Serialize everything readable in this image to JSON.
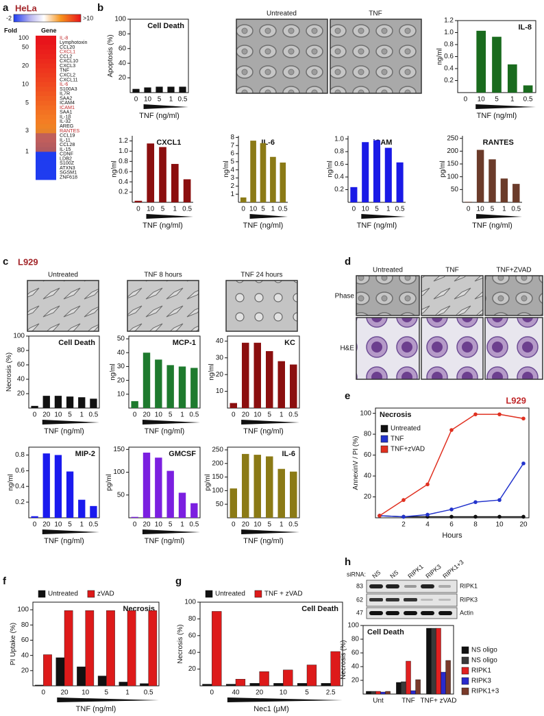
{
  "panel_labels": [
    "a",
    "b",
    "c",
    "d",
    "e",
    "f",
    "g",
    "h"
  ],
  "heatmap": {
    "title": "HeLa",
    "scale_min": "-2",
    "scale_max": ">10",
    "fold_header": "Fold",
    "gene_header": "Gene",
    "fold_labels": [
      "100",
      "50",
      "20",
      "10",
      "5",
      "3",
      "1"
    ],
    "genes": [
      "IL-8",
      "Lymphotoxin",
      "CCL20",
      "CXCL1",
      "CCL2",
      "CXCL10",
      "CXCL3",
      "TNF",
      "CXCL2",
      "CXCL11",
      "IL-6",
      "S100A3",
      "IL7R",
      "SAA2",
      "ICAM4",
      "ICAM1",
      "SAA1",
      "IL-1β",
      "IL-32",
      "AREG",
      "RANTES",
      "CCL19",
      "IL-11",
      "CCL28",
      "IL-15",
      "CDNF",
      "LDB2",
      "S100Z",
      "ATXN3",
      "SGSM1",
      "ZNF618"
    ],
    "colors": [
      "#e8141b",
      "#e8141b",
      "#e91a1b",
      "#ea1f1c",
      "#eb241c",
      "#ec2a1d",
      "#ed301d",
      "#ee361e",
      "#ee3c1e",
      "#ef421f",
      "#f0481f",
      "#f04f20",
      "#f15620",
      "#f15d21",
      "#f26421",
      "#f36b22",
      "#f37222",
      "#f47823",
      "#f47d24",
      "#f08224",
      "#e8822a",
      "#c0605a",
      "#c05e5c",
      "#b85c5e",
      "#b05a60",
      "#1f3cf0",
      "#1f3cf0",
      "#1f3cf0",
      "#1f3cf0",
      "#1f3cf0",
      "#1f3cf0"
    ],
    "highlighted_rows": [
      0,
      3,
      10,
      15,
      20
    ],
    "highlight_color": "#c0282a"
  },
  "panel_b_images": {
    "labels": [
      "Untreated",
      "TNF"
    ]
  },
  "panel_c": {
    "title": "L929",
    "image_labels": [
      "Untreated",
      "TNF 8 hours",
      "TNF 24 hours"
    ]
  },
  "panel_d": {
    "column_labels": [
      "Untreated",
      "TNF",
      "TNF+ZVAD"
    ],
    "row_labels": [
      "Phase",
      "H&E"
    ]
  },
  "panel_h_blot": {
    "sirna_label": "siRNA:",
    "lanes": [
      "NS",
      "NS",
      "RIPK1",
      "RIPK3",
      "RIPK1+3"
    ],
    "markers": [
      83,
      62,
      47
    ],
    "bands": [
      "RIPK1",
      "RIPK3",
      "Actin"
    ]
  },
  "chart_data": [
    {
      "type": "bar",
      "title": "Cell Death",
      "ylabel": "Apoptosis (%)",
      "xlabel": "TNF (ng/ml)",
      "dose_wedge": true,
      "frame": true,
      "categories": [
        "0",
        "10",
        "5",
        "1",
        "0.5"
      ],
      "values": [
        5,
        7,
        8,
        8,
        8
      ],
      "color": "#111111",
      "ylim": [
        0,
        100
      ],
      "yticks": [
        20,
        40,
        60,
        80,
        100
      ]
    },
    {
      "type": "bar",
      "title": "IL-8",
      "ylabel": "ng/ml",
      "xlabel": "TNF (ng/ml)",
      "dose_wedge": true,
      "frame": true,
      "categories": [
        "0",
        "10",
        "5",
        "1",
        "0.5"
      ],
      "values": [
        0,
        1.03,
        0.93,
        0.47,
        0.12
      ],
      "color": "#1a6b1e",
      "ylim": [
        0,
        1.2
      ],
      "yticks": [
        0.2,
        0.4,
        0.6,
        0.8,
        {
          "value": 1,
          "label": "1.0"
        },
        1.2
      ]
    },
    {
      "type": "bar",
      "title": "CXCL1",
      "ylabel": "ng/ml",
      "xlabel": "TNF (ng/ml)",
      "dose_wedge": true,
      "categories": [
        "0",
        "10",
        "5",
        "1",
        "0.5"
      ],
      "values": [
        0.03,
        1.15,
        1.08,
        0.75,
        0.45
      ],
      "color": "#8b0f0f",
      "ylim": [
        0,
        1.3
      ],
      "yticks": [
        0.2,
        0.4,
        0.6,
        0.8,
        {
          "value": 1,
          "label": "1.0"
        },
        1.2
      ]
    },
    {
      "type": "bar",
      "title": "IL-6",
      "ylabel": "ng/ml",
      "xlabel": "TNF (ng/ml)",
      "dose_wedge": true,
      "categories": [
        "0",
        "10",
        "5",
        "1",
        "0.5"
      ],
      "values": [
        0.6,
        7.6,
        7.3,
        5.6,
        4.9
      ],
      "color": "#8b7a16",
      "ylim": [
        0,
        8.2
      ],
      "yticks": [
        1,
        2,
        3,
        4,
        5,
        6,
        7,
        8
      ]
    },
    {
      "type": "bar",
      "title": "iCAM",
      "ylabel": "ng/ml",
      "xlabel": "TNF (ng/ml)",
      "dose_wedge": true,
      "categories": [
        "0",
        "10",
        "5",
        "1",
        "0.5"
      ],
      "values": [
        0.24,
        0.95,
        0.98,
        0.86,
        0.63
      ],
      "color": "#1a1ae6",
      "ylim": [
        0,
        1.05
      ],
      "yticks": [
        0.2,
        0.4,
        0.6,
        0.8,
        {
          "value": 1,
          "label": "1.0"
        }
      ]
    },
    {
      "type": "bar",
      "title": "RANTES",
      "ylabel": "pg/ml",
      "xlabel": "TNF (ng/ml)",
      "dose_wedge": true,
      "categories": [
        "0",
        "10",
        "5",
        "1",
        "0.5"
      ],
      "values": [
        2,
        205,
        168,
        93,
        72
      ],
      "color": "#6b3b2a",
      "ylim": [
        0,
        260
      ],
      "yticks": [
        50,
        100,
        150,
        200,
        250
      ]
    },
    {
      "type": "bar",
      "title": "Cell Death",
      "ylabel": "Necrosis (%)",
      "xlabel": "TNF (ng/ml)",
      "dose_wedge": true,
      "frame": true,
      "categories": [
        "0",
        "20",
        "10",
        "5",
        "1",
        "0.5"
      ],
      "values": [
        3,
        17,
        17,
        16,
        15,
        13
      ],
      "color": "#111111",
      "ylim": [
        0,
        100
      ],
      "yticks": [
        20,
        40,
        60,
        80,
        100
      ]
    },
    {
      "type": "bar",
      "title": "MCP-1",
      "ylabel": "ng/ml",
      "xlabel": "TNF (ng/ml)",
      "dose_wedge": true,
      "frame": true,
      "categories": [
        "0",
        "20",
        "10",
        "5",
        "1",
        "0.5"
      ],
      "values": [
        5,
        40,
        35,
        31,
        30,
        29
      ],
      "color": "#1e7a2e",
      "ylim": [
        0,
        52
      ],
      "yticks": [
        10,
        20,
        30,
        40,
        50
      ]
    },
    {
      "type": "bar",
      "title": "KC",
      "ylabel": "ng/ml",
      "xlabel": "TNF (ng/ml)",
      "dose_wedge": true,
      "frame": true,
      "categories": [
        "0",
        "20",
        "10",
        "5",
        "1",
        "0.5"
      ],
      "values": [
        3,
        39,
        39,
        34,
        28,
        26
      ],
      "color": "#8b0f0f",
      "ylim": [
        0,
        43
      ],
      "yticks": [
        10,
        20,
        30,
        40
      ]
    },
    {
      "type": "bar",
      "title": "MIP-2",
      "ylabel": "ng/ml",
      "xlabel": "TNF (ng/ml)",
      "dose_wedge": true,
      "frame": true,
      "categories": [
        "0",
        "20",
        "10",
        "5",
        "1",
        "0.5"
      ],
      "values": [
        0.02,
        0.82,
        0.8,
        0.59,
        0.23,
        0.15
      ],
      "color": "#1a1aee",
      "ylim": [
        0,
        0.9
      ],
      "yticks": [
        0.2,
        0.4,
        0.6,
        0.8
      ]
    },
    {
      "type": "bar",
      "title": "GMCSF",
      "ylabel": "pg/ml",
      "xlabel": "TNF (ng/ml)",
      "dose_wedge": true,
      "frame": true,
      "categories": [
        "0",
        "20",
        "10",
        "5",
        "1",
        "0.5"
      ],
      "values": [
        2,
        143,
        132,
        103,
        55,
        32
      ],
      "color": "#7b1fe0",
      "ylim": [
        0,
        155
      ],
      "yticks": [
        50,
        100,
        150
      ]
    },
    {
      "type": "bar",
      "title": "IL-6",
      "ylabel": "pg/ml",
      "xlabel": "TNF (ng/ml)",
      "dose_wedge": true,
      "frame": true,
      "categories": [
        "0",
        "20",
        "10",
        "5",
        "1",
        "0.5"
      ],
      "values": [
        108,
        235,
        232,
        226,
        180,
        170
      ],
      "color": "#8b7a16",
      "ylim": [
        0,
        260
      ],
      "yticks": [
        50,
        100,
        150,
        200,
        250
      ]
    },
    {
      "type": "line",
      "title": "Necrosis",
      "annotation": "L929",
      "annotation_color": "#c0282a",
      "ylabel": "AnnexinV / PI (%)",
      "xlabel": "Hours",
      "frame": true,
      "legend": "upper left",
      "categories": [
        null,
        "2",
        "4",
        "6",
        "8",
        "10",
        "20"
      ],
      "ylim": [
        0,
        105
      ],
      "yticks": [
        20,
        40,
        60,
        80,
        100
      ],
      "series": [
        {
          "name": "Untreated",
          "color": "#111111",
          "values": [
            2,
            1,
            1,
            1,
            1,
            1,
            1
          ]
        },
        {
          "name": "TNF",
          "color": "#2233cc",
          "values": [
            2,
            1,
            3,
            8,
            15,
            17,
            52
          ]
        },
        {
          "name": "TNF+zVAD",
          "color": "#e03020",
          "values": [
            2,
            17,
            32,
            84,
            99,
            99,
            95
          ]
        }
      ]
    },
    {
      "type": "bar",
      "title": "Necrosis",
      "ylabel": "PI Uptake (%)",
      "xlabel": "TNF (ng/ml)",
      "dose_wedge": true,
      "frame": true,
      "legend": "top",
      "categories": [
        "0",
        "20",
        "10",
        "5",
        "1",
        "0.5"
      ],
      "ylim": [
        0,
        110
      ],
      "yticks": [
        20,
        40,
        60,
        80,
        100
      ],
      "series": [
        {
          "name": "Untreated",
          "color": "#111111",
          "values": [
            1,
            37,
            25,
            13,
            5,
            3
          ]
        },
        {
          "name": "zVAD",
          "color": "#dd1a1a",
          "values": [
            41,
            99,
            99,
            99,
            99,
            99
          ]
        }
      ]
    },
    {
      "type": "bar",
      "title": "Cell Death",
      "ylabel": "Necrosis (%)",
      "xlabel": "Nec1 (μM)",
      "dose_wedge": true,
      "frame": true,
      "legend": "top",
      "categories": [
        "0",
        "40",
        "20",
        "10",
        "5",
        "2.5"
      ],
      "ylim": [
        0,
        100
      ],
      "yticks": [
        20,
        40,
        60,
        80,
        100
      ],
      "series": [
        {
          "name": "Untreated",
          "color": "#111111",
          "values": [
            2,
            2,
            3,
            3,
            3,
            3
          ]
        },
        {
          "name": "TNF + zVAD",
          "color": "#dd1a1a",
          "values": [
            89,
            8,
            17,
            19,
            25,
            41
          ]
        }
      ]
    },
    {
      "type": "bar",
      "title": "Cell Death",
      "ylabel": "Necrosis (%)",
      "frame": true,
      "legend": "right",
      "categories": [
        "Unt",
        "TNF",
        "TNF+ zVAD"
      ],
      "ylim": [
        0,
        100
      ],
      "yticks": [
        20,
        40,
        60,
        80,
        100
      ],
      "series": [
        {
          "name": "NS oligo",
          "color": "#111111",
          "values": [
            4,
            17,
            96
          ]
        },
        {
          "name": "NS oligo",
          "color": "#3a3a3a",
          "values": [
            4,
            18,
            96
          ]
        },
        {
          "name": "RIPK1",
          "color": "#e02020",
          "values": [
            4,
            48,
            96
          ]
        },
        {
          "name": "RIPK3",
          "color": "#2a2acc",
          "values": [
            3,
            5,
            32
          ]
        },
        {
          "name": "RIPK1+3",
          "color": "#7a3a2a",
          "values": [
            4,
            21,
            49
          ]
        }
      ]
    }
  ]
}
